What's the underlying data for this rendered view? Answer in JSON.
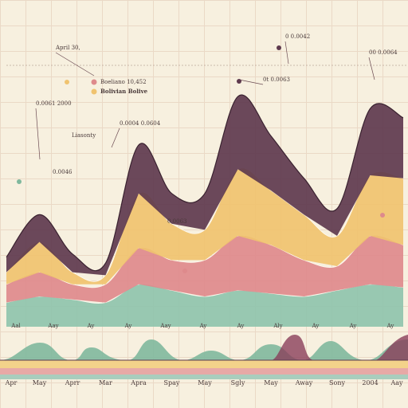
{
  "chart_data": {
    "type": "area",
    "categories": [
      "Apr",
      "May",
      "Aprr",
      "Mar",
      "Apra",
      "Spay",
      "May",
      "Sgly",
      "May",
      "Away",
      "Sony",
      "2004",
      "Aay"
    ],
    "upper_labels": [
      "Aal",
      "Aay",
      "Ay",
      "Ay",
      "Aay",
      "Ay",
      "Ay",
      "Aly",
      "Ay",
      "Ay",
      "Ay"
    ],
    "series": [
      {
        "color": "#8fc4ad",
        "values": [
          8,
          10,
          9,
          8,
          14,
          12,
          10,
          12,
          11,
          10,
          12,
          14,
          13
        ]
      },
      {
        "name": "Boeliano 10,452",
        "color": "#de8a8c",
        "values": [
          6,
          8,
          5,
          6,
          12,
          10,
          12,
          18,
          16,
          12,
          8,
          16,
          14
        ]
      },
      {
        "name": "Bolivian Bolive",
        "color": "#f0c36f",
        "values": [
          4,
          10,
          4,
          3,
          18,
          12,
          10,
          22,
          18,
          15,
          10,
          20,
          22
        ]
      },
      {
        "color": "#5e3a4e",
        "values": [
          5,
          9,
          6,
          4,
          16,
          10,
          12,
          24,
          18,
          12,
          9,
          22,
          20
        ]
      }
    ],
    "ylim": [
      0,
      100
    ],
    "annotations": [
      "April 30,",
      "0.0061 2000",
      "0.0004 0.0604",
      "Liasonty",
      "0.0046",
      "0t 0.0063",
      "0 0.0042",
      "00 0.0064",
      "0.0063"
    ]
  }
}
